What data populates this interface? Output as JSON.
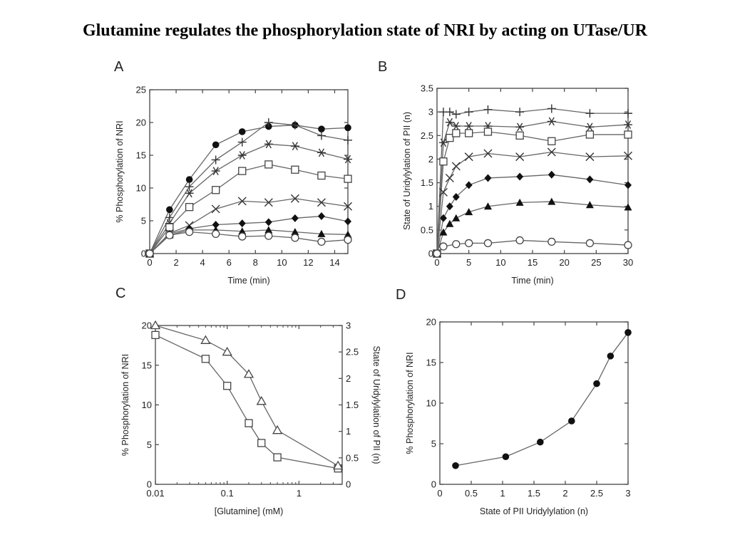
{
  "title": "Glutamine regulates the phosphorylation state of NRI by acting on UTase/UR",
  "chart_data": [
    {
      "panel": "A",
      "type": "line",
      "xlabel": "Time (min)",
      "ylabel": "% Phosphorylation of NRI",
      "xlim": [
        0,
        15
      ],
      "ylim": [
        0,
        25
      ],
      "xticks": [
        "0",
        "2",
        "4",
        "6",
        "8",
        "10",
        "12",
        "14"
      ],
      "yticks": [
        "0",
        "5",
        "10",
        "15",
        "20",
        "25"
      ],
      "series": [
        {
          "marker": "filled-circle",
          "x": [
            0,
            1.5,
            3,
            5,
            7,
            9,
            11,
            13,
            15
          ],
          "y": [
            0,
            6.7,
            11.3,
            16.6,
            18.6,
            19.4,
            19.6,
            19.0,
            19.2
          ]
        },
        {
          "marker": "plus",
          "x": [
            0,
            1.5,
            3,
            5,
            7,
            9,
            11,
            13,
            15
          ],
          "y": [
            0,
            5.5,
            10.2,
            14.3,
            17.0,
            20.0,
            19.6,
            18.0,
            17.3
          ]
        },
        {
          "marker": "asterisk",
          "x": [
            0,
            1.5,
            3,
            5,
            7,
            9,
            11,
            13,
            15
          ],
          "y": [
            0,
            4.6,
            9.2,
            12.6,
            15.0,
            16.7,
            16.4,
            15.4,
            14.4
          ]
        },
        {
          "marker": "open-square",
          "x": [
            0,
            1.5,
            3,
            5,
            7,
            9,
            11,
            13,
            15
          ],
          "y": [
            0,
            4.0,
            7.1,
            9.7,
            12.6,
            13.6,
            12.8,
            11.9,
            11.4
          ]
        },
        {
          "marker": "x-cross",
          "x": [
            0,
            1.5,
            3,
            5,
            7,
            9,
            11,
            13,
            15
          ],
          "y": [
            0,
            3.1,
            4.3,
            6.8,
            8.0,
            7.8,
            8.4,
            7.8,
            7.2
          ]
        },
        {
          "marker": "filled-diamond",
          "x": [
            0,
            1.5,
            3,
            5,
            7,
            9,
            11,
            13,
            15
          ],
          "y": [
            0,
            3.0,
            3.8,
            4.4,
            4.6,
            4.8,
            5.4,
            5.7,
            4.9
          ]
        },
        {
          "marker": "filled-triangle",
          "x": [
            0,
            1.5,
            3,
            5,
            7,
            9,
            11,
            13,
            15
          ],
          "y": [
            0,
            2.8,
            3.6,
            3.6,
            3.4,
            3.6,
            3.3,
            3.0,
            2.9
          ]
        },
        {
          "marker": "open-circle",
          "x": [
            0,
            1.5,
            3,
            5,
            7,
            9,
            11,
            13,
            15
          ],
          "y": [
            0,
            2.8,
            3.3,
            3.0,
            2.6,
            2.7,
            2.4,
            1.8,
            2.1
          ]
        }
      ]
    },
    {
      "panel": "B",
      "type": "line",
      "xlabel": "Time (min)",
      "ylabel": "State of Uridylylation of PII (n)",
      "xlim": [
        0,
        30
      ],
      "ylim": [
        0,
        3.5
      ],
      "xticks": [
        "0",
        "5",
        "10",
        "15",
        "20",
        "25",
        "30"
      ],
      "yticks": [
        "0",
        "0.5",
        "1",
        "1.5",
        "2",
        "2.5",
        "3",
        "3.5"
      ],
      "series": [
        {
          "marker": "plus",
          "x": [
            0,
            1,
            2,
            3,
            5,
            8,
            13,
            18,
            24,
            30
          ],
          "y": [
            0,
            3.0,
            3.0,
            2.95,
            3.0,
            3.05,
            3.0,
            3.07,
            2.97,
            2.97
          ]
        },
        {
          "marker": "asterisk",
          "x": [
            0,
            1,
            2,
            3,
            5,
            8,
            13,
            18,
            24,
            30
          ],
          "y": [
            0,
            2.35,
            2.78,
            2.7,
            2.7,
            2.7,
            2.68,
            2.8,
            2.68,
            2.73
          ]
        },
        {
          "marker": "open-square",
          "x": [
            0,
            1,
            2,
            3,
            5,
            8,
            13,
            18,
            24,
            30
          ],
          "y": [
            0,
            1.95,
            2.45,
            2.55,
            2.55,
            2.58,
            2.5,
            2.38,
            2.52,
            2.52
          ]
        },
        {
          "marker": "x-cross",
          "x": [
            0,
            1,
            2,
            3,
            5,
            8,
            13,
            18,
            24,
            30
          ],
          "y": [
            0,
            1.3,
            1.6,
            1.85,
            2.05,
            2.12,
            2.05,
            2.15,
            2.05,
            2.07
          ]
        },
        {
          "marker": "filled-diamond",
          "x": [
            0,
            1,
            2,
            3,
            5,
            8,
            13,
            18,
            24,
            30
          ],
          "y": [
            0,
            0.75,
            1.0,
            1.2,
            1.45,
            1.6,
            1.63,
            1.67,
            1.57,
            1.45
          ]
        },
        {
          "marker": "filled-triangle",
          "x": [
            0,
            1,
            2,
            3,
            5,
            8,
            13,
            18,
            24,
            30
          ],
          "y": [
            0,
            0.45,
            0.63,
            0.75,
            0.88,
            1.0,
            1.08,
            1.1,
            1.03,
            0.98
          ]
        },
        {
          "marker": "open-circle",
          "x": [
            0,
            1,
            3,
            5,
            8,
            13,
            18,
            24,
            30
          ],
          "y": [
            0,
            0.15,
            0.2,
            0.22,
            0.22,
            0.28,
            0.25,
            0.22,
            0.18
          ]
        }
      ]
    },
    {
      "panel": "C",
      "type": "line",
      "xscale": "log",
      "xlabel": "[Glutamine] (mM)",
      "ylabel": "% Phosphorylation of NRI",
      "ylabel2": "State of Uridylylation of PII (n)",
      "xlim": [
        0.01,
        4
      ],
      "ylim": [
        0,
        20
      ],
      "ylim2": [
        0,
        3
      ],
      "xticks": [
        {
          "v": 0.01,
          "label": "0.01"
        },
        {
          "v": 0.1,
          "label": "0.1"
        },
        {
          "v": 1,
          "label": "1"
        }
      ],
      "yticks": [
        "0",
        "5",
        "10",
        "15",
        "20"
      ],
      "yticks2": [
        "0",
        "0.5",
        "1",
        "1.5",
        "2",
        "2.5",
        "3"
      ],
      "series": [
        {
          "marker": "open-square",
          "axis": "left",
          "x": [
            0.01,
            0.05,
            0.1,
            0.2,
            0.3,
            0.5,
            3.5
          ],
          "y": [
            18.8,
            15.8,
            12.4,
            7.7,
            5.2,
            3.4,
            2.0
          ]
        },
        {
          "marker": "open-triangle",
          "axis": "right",
          "x": [
            0.01,
            0.05,
            0.1,
            0.2,
            0.3,
            0.5,
            3.5
          ],
          "y": [
            3.0,
            2.72,
            2.5,
            2.08,
            1.57,
            1.02,
            0.35
          ]
        }
      ]
    },
    {
      "panel": "D",
      "type": "line",
      "xlabel": "State of PII Uridylylation (n)",
      "ylabel": "% Phosphorylation of NRI",
      "xlim": [
        0,
        3
      ],
      "ylim": [
        0,
        20
      ],
      "xticks": [
        "0",
        "0.5",
        "1",
        "1.5",
        "2",
        "2.5",
        "3"
      ],
      "yticks": [
        "0",
        "5",
        "10",
        "15",
        "20"
      ],
      "series": [
        {
          "marker": "filled-circle",
          "x": [
            0.25,
            1.05,
            1.6,
            2.1,
            2.5,
            2.72,
            3.0
          ],
          "y": [
            2.3,
            3.4,
            5.2,
            7.8,
            12.4,
            15.8,
            18.7
          ]
        }
      ]
    }
  ]
}
